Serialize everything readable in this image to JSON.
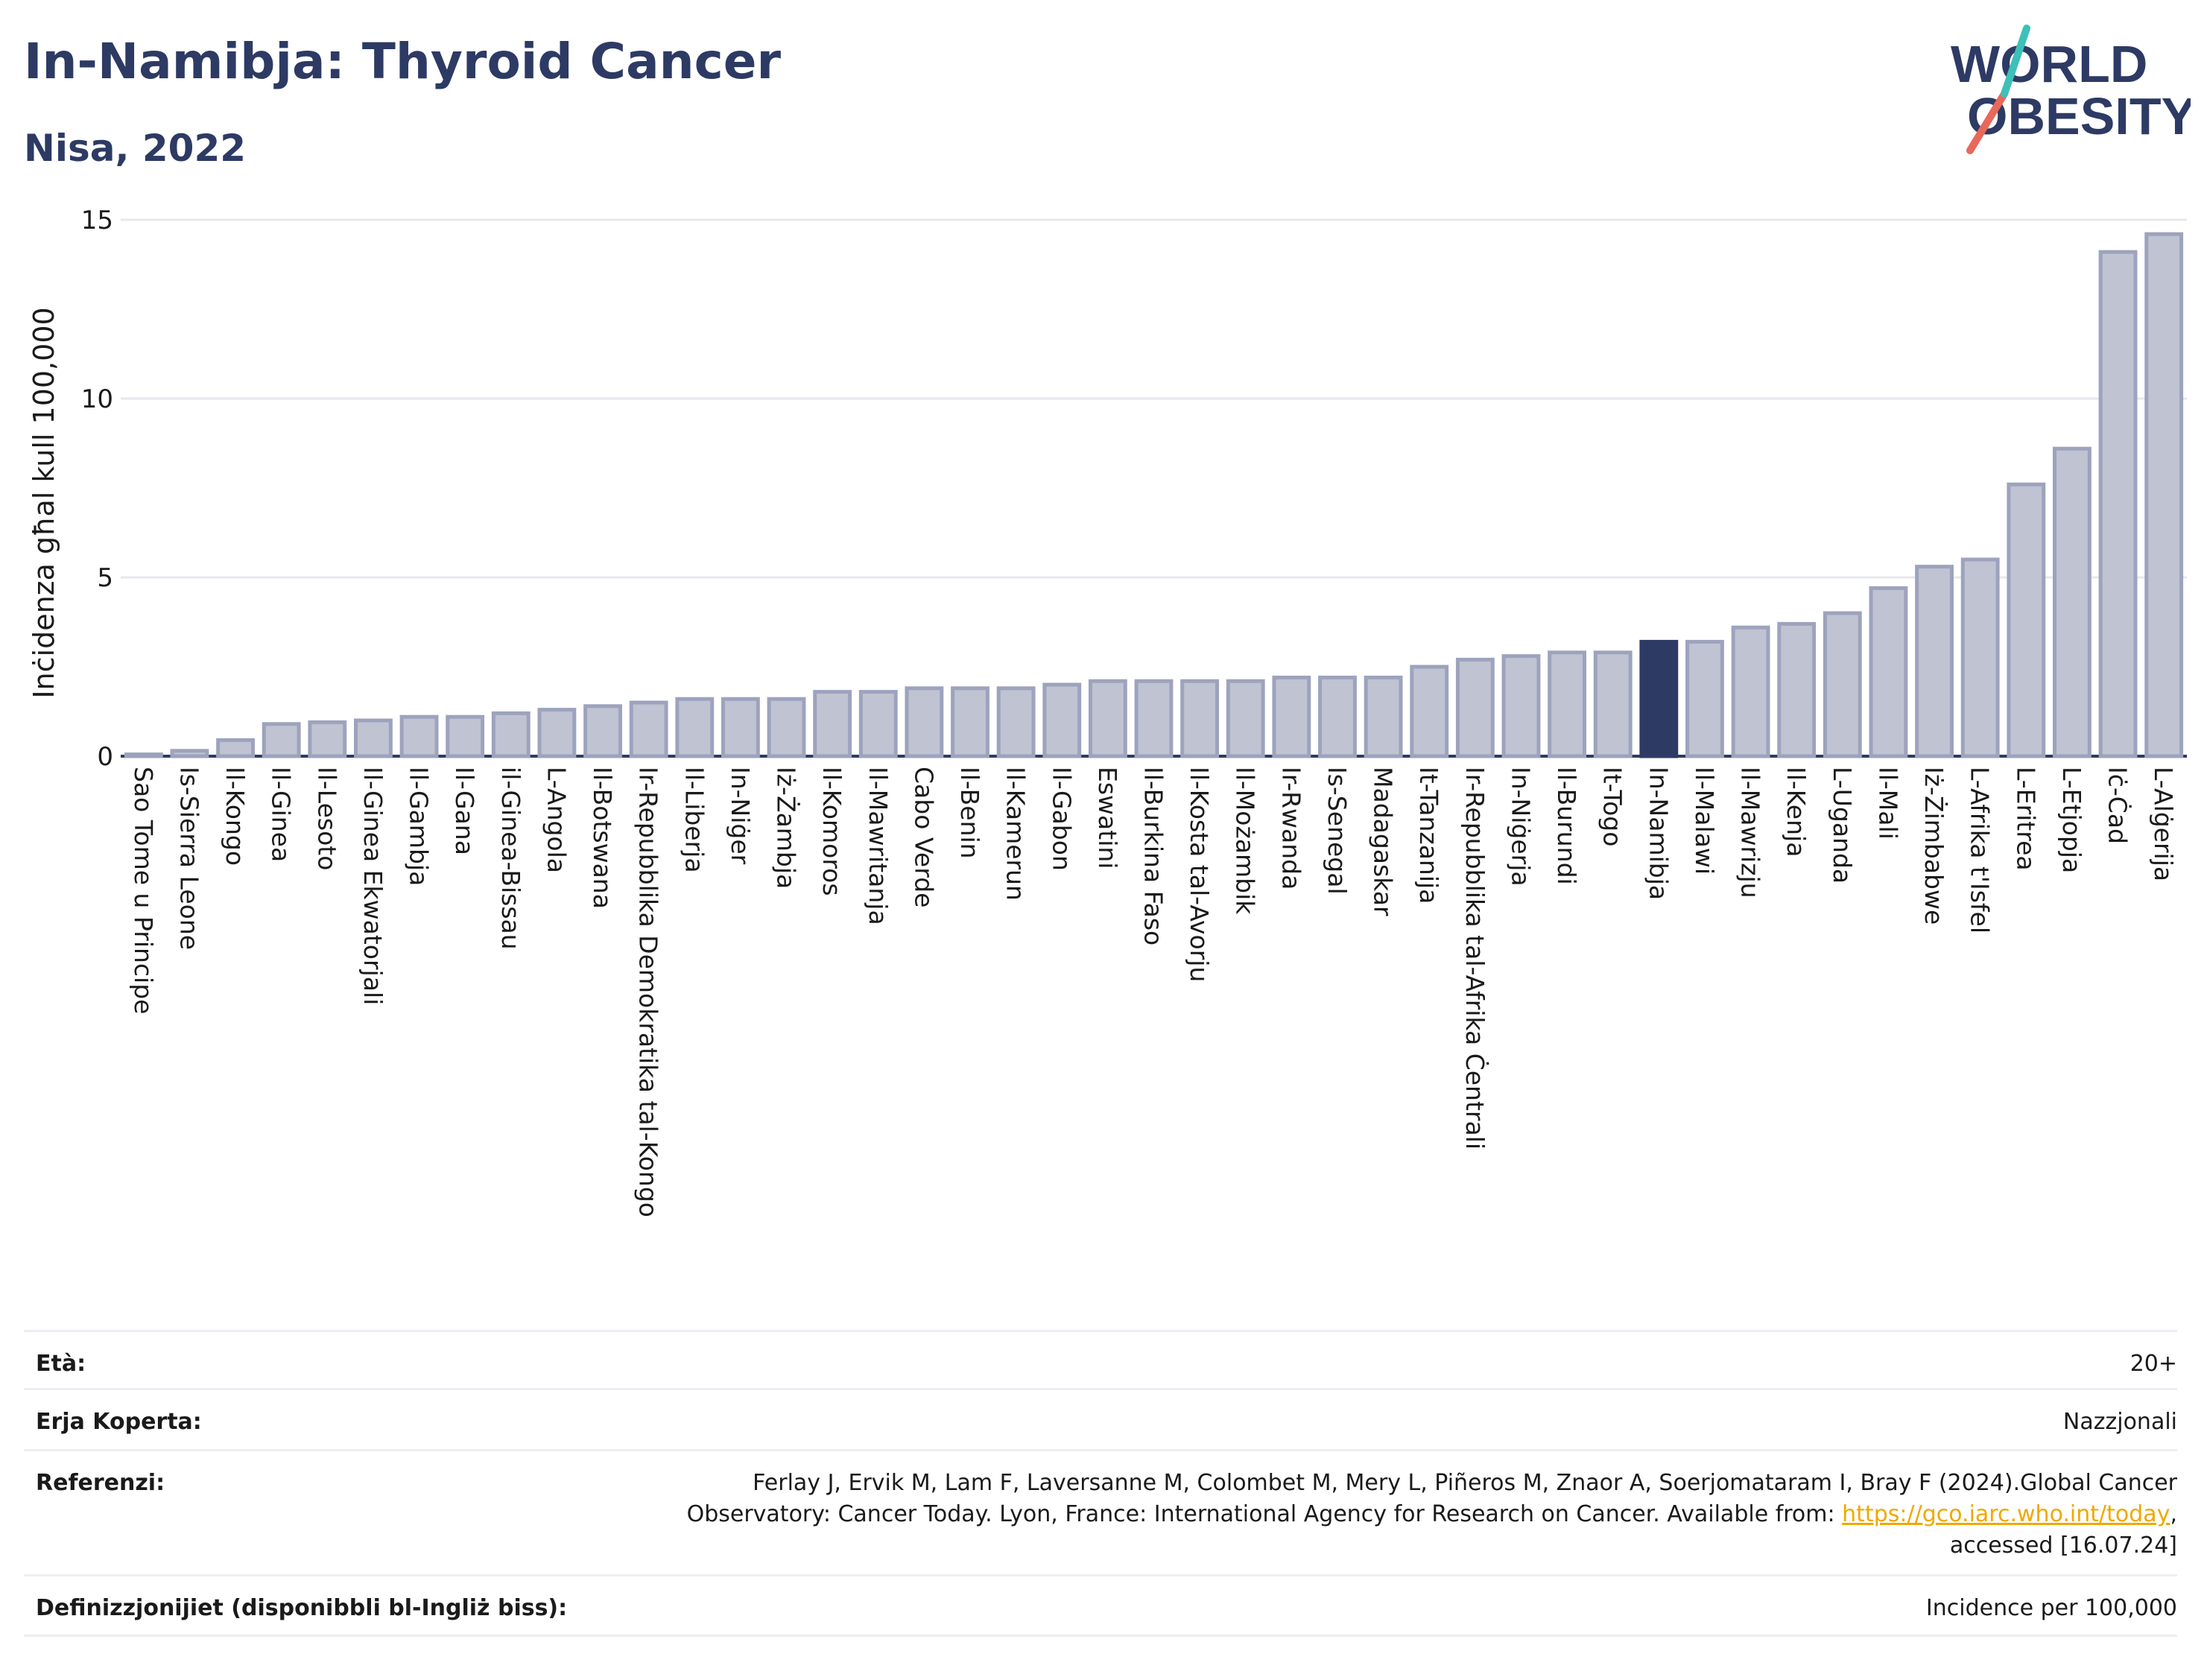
{
  "header": {
    "title": "In-Namibja: Thyroid Cancer",
    "subtitle": "Nisa, 2022"
  },
  "logo": {
    "line1": "WORLD",
    "line2": "OBESITY",
    "slash_colors": [
      "#e8685a",
      "#3cc0b8"
    ],
    "text_color": "#2d3a64"
  },
  "chart_data": {
    "type": "bar",
    "ylabel": "Inċidenza għal kull 100,000",
    "ylim": [
      0,
      15
    ],
    "yticks": [
      0,
      5,
      10,
      15
    ],
    "grid": true,
    "highlight": "In-Namibja",
    "colors": {
      "bar": "#bfc3d2",
      "bar_edge": "#9da3bd",
      "highlight": "#2d3a64"
    },
    "categories": [
      "Sao Tome u Principe",
      "Is-Sierra Leone",
      "Il-Kongo",
      "Il-Ginea",
      "Il-Lesoto",
      "Il-Ginea Ekwatorjali",
      "Il-Gambja",
      "Il-Gana",
      "il-Ginea-Bissau",
      "L-Angola",
      "Il-Botswana",
      "Ir-Repubblika Demokratika tal-Kongo",
      "Il-Liberja",
      "In-Niġer",
      "Iż-Żambja",
      "Il-Komoros",
      "Il-Mawritanja",
      "Cabo Verde",
      "Il-Benin",
      "Il-Kamerun",
      "Il-Gabon",
      "Eswatini",
      "Il-Burkina Faso",
      "Il-Kosta tal-Avorju",
      "Il-Możambik",
      "Ir-Rwanda",
      "Is-Senegal",
      "Madagaskar",
      "It-Tanzanija",
      "Ir-Repubblika tal-Afrika Ċentrali",
      "In-Niġerja",
      "Il-Burundi",
      "It-Togo",
      "In-Namibja",
      "Il-Malawi",
      "Il-Mawrizju",
      "Il-Kenja",
      "L-Uganda",
      "Il-Mali",
      "Iż-Żimbabwe",
      "L-Afrika t'Isfel",
      "L-Eritrea",
      "L-Etjopja",
      "Iċ-Ċad",
      "L-Alġerija"
    ],
    "values": [
      0.05,
      0.15,
      0.45,
      0.9,
      0.95,
      1.0,
      1.1,
      1.1,
      1.2,
      1.3,
      1.4,
      1.5,
      1.6,
      1.6,
      1.6,
      1.8,
      1.8,
      1.9,
      1.9,
      1.9,
      2.0,
      2.1,
      2.1,
      2.1,
      2.1,
      2.2,
      2.2,
      2.2,
      2.5,
      2.7,
      2.8,
      2.9,
      2.9,
      3.2,
      3.2,
      3.6,
      3.7,
      4.0,
      4.7,
      5.3,
      5.5,
      7.6,
      8.6,
      14.1,
      14.6
    ]
  },
  "meta": {
    "age_label": "Età:",
    "age_value": "20+",
    "area_label": "Erja Koperta:",
    "area_value": "Nazzjonali",
    "ref_label": "Referenzi:",
    "ref_text": "Ferlay J, Ervik M, Lam F, Laversanne M, Colombet M, Mery L, Piñeros M, Znaor A, Soerjomataram I, Bray F (2024).Global Cancer Observatory: Cancer Today. Lyon, France: International Agency for Research on Cancer. Available from:",
    "ref_link": "https://gco.iarc.who.int/today",
    "ref_suffix": ", accessed [16.07.24]",
    "def_label": "Definizzjonijiet (disponibbli bl-Ingliż biss):",
    "def_value": "Incidence per 100,000"
  }
}
